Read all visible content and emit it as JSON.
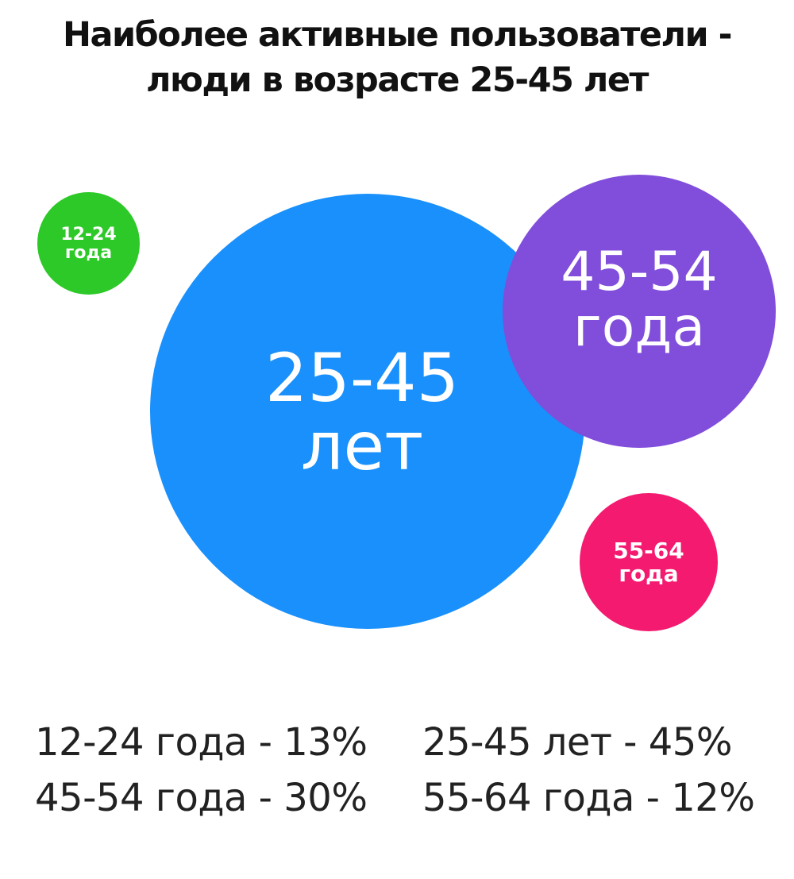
{
  "chart_data": {
    "type": "bubble",
    "title": "Наиболее активные пользователи - люди в возрасте 25-45 лет",
    "title_lines": [
      "Наиболее активные пользователи -",
      "люди в возрасте 25-45 лет"
    ],
    "bubbles": [
      {
        "id": "12-24",
        "range": "12-24",
        "unit": "года",
        "color": "#2dc928",
        "value": 13
      },
      {
        "id": "25-45",
        "range": "25-45",
        "unit": "лет",
        "color": "#1990fb",
        "value": 45
      },
      {
        "id": "45-54",
        "range": "45-54",
        "unit": "года",
        "color": "#814ddb",
        "value": 30
      },
      {
        "id": "55-64",
        "range": "55-64",
        "unit": "года",
        "color": "#f31a70",
        "value": 12
      }
    ],
    "legend": [
      [
        {
          "text": "12-24 года - 13%"
        },
        {
          "text": "25-45 лет - 45%"
        }
      ],
      [
        {
          "text": "45-54 года - 30%"
        },
        {
          "text": "55-64 года - 12%"
        }
      ]
    ]
  }
}
